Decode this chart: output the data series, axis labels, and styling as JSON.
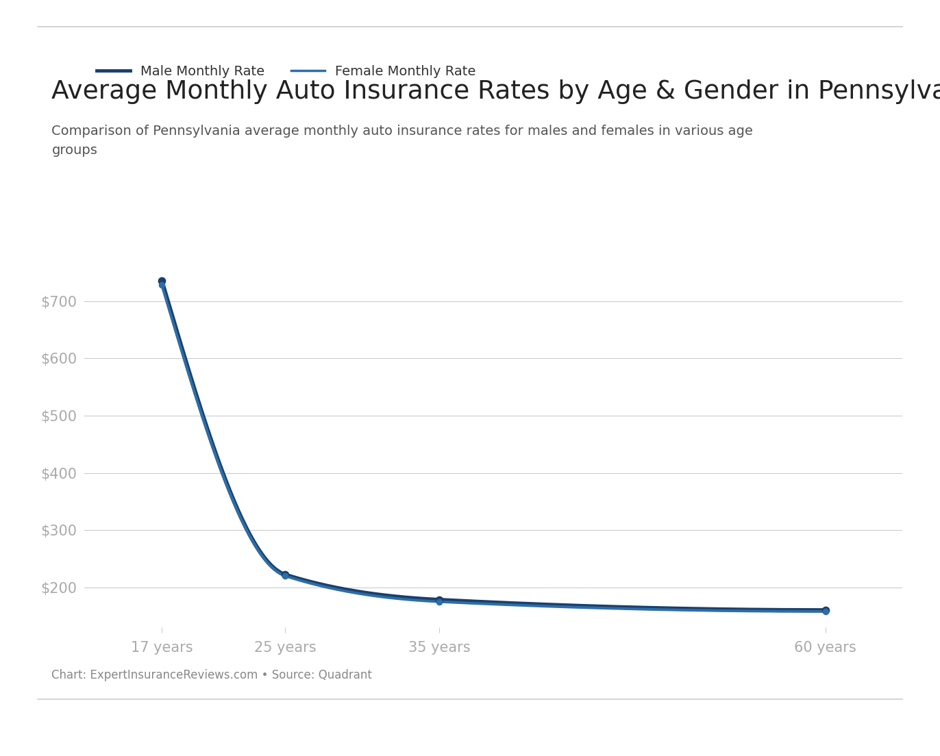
{
  "title": "Average Monthly Auto Insurance Rates by Age & Gender in Pennsylvania",
  "subtitle": "Comparison of Pennsylvania average monthly auto insurance rates for males and females in various age\ngroups",
  "footnote": "Chart: ExpertInsuranceReviews.com • Source: Quadrant",
  "legend_labels": [
    "Male Monthly Rate",
    "Female Monthly Rate"
  ],
  "ages": [
    17,
    25,
    35,
    60
  ],
  "age_labels": [
    "17 years",
    "25 years",
    "35 years",
    "60 years"
  ],
  "male_rates": [
    735,
    222,
    178,
    160
  ],
  "female_rates": [
    728,
    220,
    175,
    158
  ],
  "male_color": "#1b3f6b",
  "female_color": "#2e6ea6",
  "background_color": "#ffffff",
  "grid_color": "#cccccc",
  "yticks": [
    200,
    300,
    400,
    500,
    600,
    700
  ],
  "ylim": [
    130,
    790
  ],
  "xlim": [
    12,
    65
  ],
  "title_fontsize": 27,
  "subtitle_fontsize": 14,
  "footnote_fontsize": 12,
  "tick_label_color": "#aaaaaa",
  "title_color": "#222222",
  "subtitle_color": "#555555",
  "legend_color": "#333333",
  "legend_fontsize": 14,
  "axis_tick_fontsize": 15
}
